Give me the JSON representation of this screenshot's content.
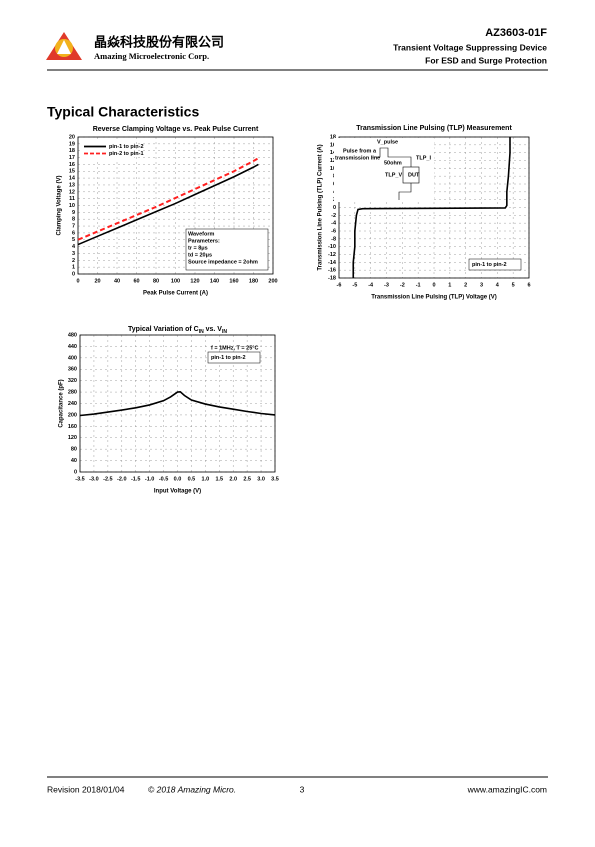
{
  "header": {
    "company_cn": "晶焱科技股份有限公司",
    "company_en": "Amazing Microelectronic Corp.",
    "part": "AZ3603-01F",
    "line1": "Transient Voltage Suppressing Device",
    "line2": "For ESD and Surge Protection"
  },
  "section_title": "Typical Characteristics",
  "chart_data": [
    {
      "type": "line",
      "title": "Reverse Clamping Voltage vs. Peak Pulse Current",
      "x_label": "Peak Pulse Current (A)",
      "y_label": "Clamping Voltage (V)",
      "x": [
        0,
        20,
        40,
        60,
        80,
        100,
        120,
        140,
        160,
        180,
        185
      ],
      "series": [
        {
          "name": "pin-1 to pin-2",
          "color": "#000000",
          "style": "solid",
          "values": [
            4.3,
            5.5,
            6.7,
            7.9,
            9.1,
            10.3,
            11.6,
            12.9,
            14.2,
            15.6,
            16.0
          ]
        },
        {
          "name": "pin-2 to pin-1",
          "color": "#ff2020",
          "style": "dashed",
          "values": [
            5.0,
            6.2,
            7.4,
            8.6,
            9.8,
            11.1,
            12.4,
            13.7,
            15.0,
            16.5,
            16.9
          ]
        }
      ],
      "xlim": [
        0,
        200
      ],
      "xticks": [
        0,
        20,
        40,
        60,
        80,
        100,
        120,
        140,
        160,
        180,
        200
      ],
      "ylim": [
        0,
        20
      ],
      "yticks": [
        0,
        1,
        2,
        3,
        4,
        5,
        6,
        7,
        8,
        9,
        10,
        11,
        12,
        13,
        14,
        15,
        16,
        17,
        18,
        19,
        20
      ],
      "grid": true,
      "legend": "upper left",
      "annotations": [
        "Waveform",
        "Parameters:",
        "tr = 8μs",
        "td = 20μs",
        "Source impedance = 2ohm"
      ]
    },
    {
      "type": "line",
      "title": "Transmission Line Pulsing (TLP) Measurement",
      "x_label": "Transmission Line Pulsing (TLP) Voltage (V)",
      "y_label": "Transmission Line Pulsing (TLP) Current (A)",
      "series": [
        {
          "name": "pin-1 to pin-2",
          "color": "#000000",
          "style": "solid",
          "x": [
            -5.1,
            -5.1,
            -5.0,
            -5.0,
            -4.9,
            -4.8,
            -4.5,
            0,
            4.5,
            4.6,
            4.6,
            4.7,
            4.8,
            4.8
          ],
          "values": [
            -18,
            -14,
            -10,
            -6,
            -2,
            -0.5,
            -0.3,
            -0.2,
            -0.1,
            0.5,
            4,
            8,
            14,
            18
          ]
        }
      ],
      "xlim": [
        -6,
        6
      ],
      "xticks": [
        -6,
        -5,
        -4,
        -3,
        -2,
        -1,
        0,
        1,
        2,
        3,
        4,
        5,
        6
      ],
      "ylim": [
        -18,
        18
      ],
      "yticks": [
        -18,
        -16,
        -14,
        -12,
        -10,
        -8,
        -6,
        -4,
        -2,
        0,
        2,
        4,
        6,
        8,
        10,
        12,
        14,
        16,
        18
      ],
      "grid": true,
      "legend": "lower right",
      "annotations": [
        "V_pulse",
        "Pulse from a",
        "transmission line",
        "50ohm",
        "TLP_I",
        "TLP_V",
        "DUT"
      ]
    },
    {
      "type": "line",
      "title": [
        "Typical Variation of C",
        "IN",
        " vs. V",
        "IN"
      ],
      "x_label": "Input Voltage (V)",
      "y_label": "Capacitance (pF)",
      "x": [
        -3.5,
        -3,
        -2.5,
        -2,
        -1.5,
        -1,
        -0.5,
        -0.25,
        0,
        0.1,
        0.25,
        0.5,
        1,
        1.5,
        2,
        2.5,
        3,
        3.5
      ],
      "series": [
        {
          "name": "pin-1 to pin-2",
          "color": "#000000",
          "style": "solid",
          "values": [
            198,
            203,
            210,
            217,
            225,
            235,
            250,
            263,
            280,
            281,
            268,
            252,
            238,
            228,
            220,
            212,
            205,
            200
          ]
        }
      ],
      "xlim": [
        -3.5,
        3.5
      ],
      "xticks": [
        -3.5,
        {
          "value": -3,
          "label": "-3.0"
        },
        -2.5,
        {
          "value": -2,
          "label": "-2.0"
        },
        -1.5,
        {
          "value": -1,
          "label": "-1.0"
        },
        -0.5,
        {
          "value": 0,
          "label": "0.0"
        },
        0.5,
        {
          "value": 1,
          "label": "1.0"
        },
        1.5,
        {
          "value": 2,
          "label": "2.0"
        },
        2.5,
        {
          "value": 3,
          "label": "3.0"
        },
        3.5
      ],
      "ylim": [
        0,
        480
      ],
      "yticks": [
        0,
        40,
        80,
        120,
        160,
        200,
        240,
        280,
        320,
        360,
        400,
        440,
        480
      ],
      "grid": true,
      "legend": "upper right",
      "annotations": [
        "f = 1MHz, T = 25°C"
      ]
    }
  ],
  "footer": {
    "revision": "Revision 2018/01/04",
    "copyright": "© 2018 Amazing Micro.",
    "page": "3",
    "url": "www.amazingIC.com"
  }
}
